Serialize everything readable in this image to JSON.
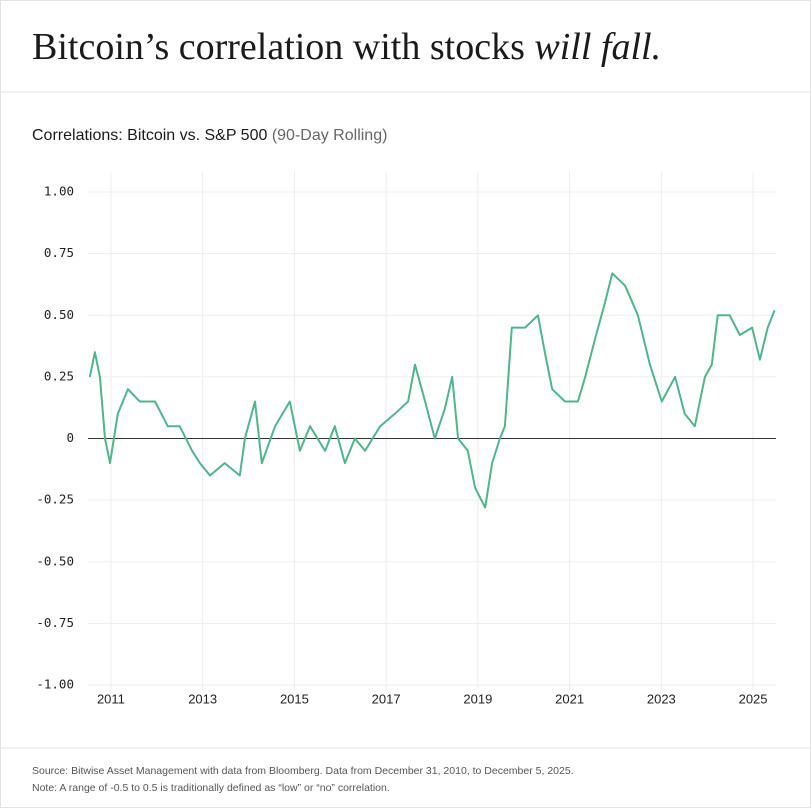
{
  "header": {
    "title": "Bitcoin’s correlation with stocks ",
    "title_emphasis": "will fall."
  },
  "chart_data": {
    "type": "line",
    "title": "Correlations: Bitcoin vs. S&P 500",
    "subtitle": "(90-Day Rolling)",
    "x": [
      2011.04,
      2011.15,
      2011.26,
      2011.37,
      2011.48,
      2011.65,
      2011.87,
      2012.13,
      2012.46,
      2012.74,
      2013.0,
      2013.27,
      2013.44,
      2013.66,
      2013.98,
      2014.31,
      2014.42,
      2014.64,
      2014.79,
      2015.08,
      2015.4,
      2015.62,
      2015.84,
      2016.17,
      2016.38,
      2016.6,
      2016.82,
      2017.04,
      2017.37,
      2017.69,
      2017.98,
      2018.13,
      2018.35,
      2018.56,
      2018.78,
      2018.94,
      2019.07,
      2019.28,
      2019.44,
      2019.66,
      2019.81,
      2019.98,
      2020.09,
      2020.24,
      2020.53,
      2020.81,
      2020.96,
      2021.12,
      2021.4,
      2021.68,
      2021.84,
      2022.05,
      2022.27,
      2022.43,
      2022.71,
      2022.99,
      2023.25,
      2023.51,
      2023.8,
      2024.01,
      2024.23,
      2024.45,
      2024.6,
      2024.73,
      2024.99,
      2025.21,
      2025.48,
      2025.65,
      2025.82,
      2025.97
    ],
    "series": [
      {
        "name": "Bitcoin vs. S&P 500",
        "color": "#4fb58a",
        "values": [
          0.25,
          0.35,
          0.25,
          0.0,
          -0.1,
          0.1,
          0.2,
          0.15,
          0.15,
          0.05,
          0.05,
          -0.05,
          -0.1,
          -0.15,
          -0.1,
          -0.15,
          0.0,
          0.15,
          -0.1,
          0.05,
          0.15,
          -0.05,
          0.05,
          -0.05,
          0.05,
          -0.1,
          0.0,
          -0.05,
          0.05,
          0.1,
          0.15,
          0.3,
          0.15,
          0.0,
          0.12,
          0.25,
          0.0,
          -0.05,
          -0.2,
          -0.28,
          -0.1,
          0.0,
          0.05,
          0.45,
          0.45,
          0.5,
          0.35,
          0.2,
          0.15,
          0.15,
          0.25,
          0.4,
          0.55,
          0.67,
          0.62,
          0.5,
          0.3,
          0.15,
          0.25,
          0.1,
          0.05,
          0.25,
          0.3,
          0.5,
          0.5,
          0.42,
          0.45,
          0.32,
          0.45,
          0.52
        ]
      }
    ],
    "xlim": [
      2011,
      2026
    ],
    "xticks": [
      {
        "value": 2011.5,
        "label": "2011"
      },
      {
        "value": 2013.5,
        "label": "2013"
      },
      {
        "value": 2015.5,
        "label": "2015"
      },
      {
        "value": 2017.5,
        "label": "2017"
      },
      {
        "value": 2019.5,
        "label": "2019"
      },
      {
        "value": 2021.5,
        "label": "2021"
      },
      {
        "value": 2023.5,
        "label": "2023"
      },
      {
        "value": 2025.5,
        "label": "2025"
      }
    ],
    "ylim": [
      -1,
      1
    ],
    "yticks": [
      {
        "value": -1,
        "label": "-1.00"
      },
      -0.75,
      {
        "value": -0.5,
        "label": "-0.50"
      },
      -0.25,
      0,
      0.25,
      {
        "value": 0.5,
        "label": "0.50"
      },
      0.75,
      {
        "value": 1,
        "label": "1.00"
      }
    ],
    "grid": true
  },
  "footer": {
    "source": "Source: Bitwise Asset Management with data from Bloomberg. Data from December 31, 2010, to December 5, 2025.",
    "note": "Note: A range of -0.5 to 0.5 is traditionally defined as “low” or “no” correlation."
  }
}
